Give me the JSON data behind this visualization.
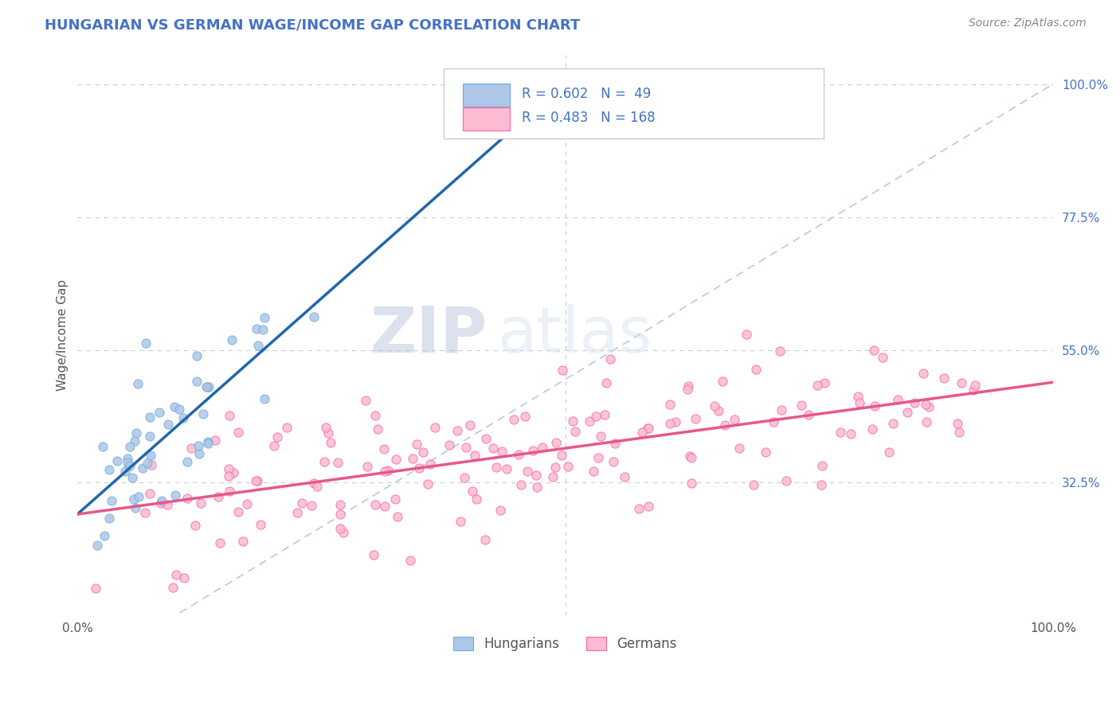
{
  "title": "HUNGARIAN VS GERMAN WAGE/INCOME GAP CORRELATION CHART",
  "source": "Source: ZipAtlas.com",
  "ylabel": "Wage/Income Gap",
  "xlim": [
    0.0,
    1.0
  ],
  "ylim": [
    0.1,
    1.05
  ],
  "y_tick_labels_right": [
    "100.0%",
    "77.5%",
    "55.0%",
    "32.5%"
  ],
  "y_tick_values_right": [
    1.0,
    0.775,
    0.55,
    0.325
  ],
  "background_color": "#ffffff",
  "grid_color": "#cccccc",
  "hungarian_fill": "#aec6e8",
  "hungarian_edge": "#6baed6",
  "german_fill": "#fcbad3",
  "german_edge": "#f768a1",
  "diagonal_color": "#b0c4de",
  "blue_line_color": "#2166ac",
  "pink_line_color": "#e8578a",
  "R_hun": 0.602,
  "N_hun": 49,
  "R_ger": 0.483,
  "N_ger": 168,
  "legend_label_hun": "Hungarians",
  "legend_label_ger": "Germans",
  "watermark_zip": "ZIP",
  "watermark_atlas": "atlas",
  "title_color": "#4472c4",
  "tick_color": "#4472c4",
  "ylabel_color": "#555555",
  "source_color": "#888888"
}
